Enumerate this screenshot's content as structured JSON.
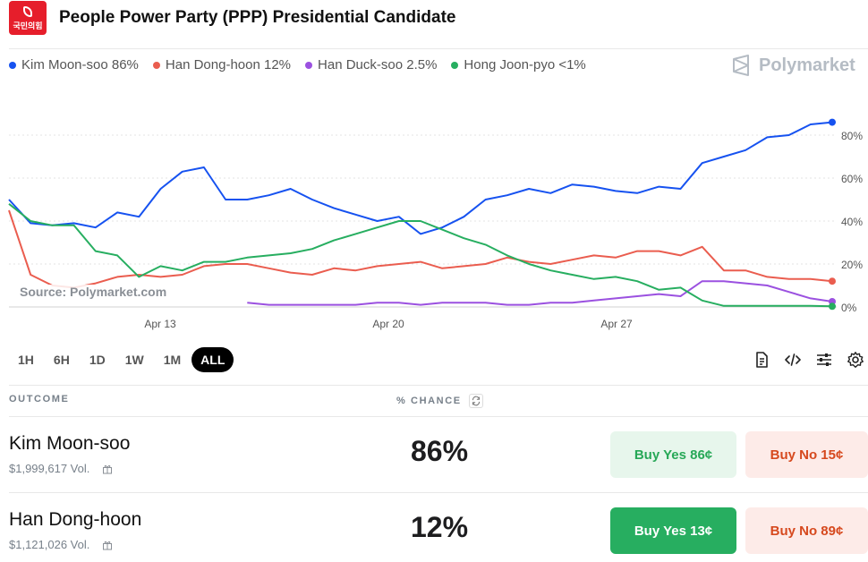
{
  "header": {
    "title": "People Power Party (PPP) Presidential Candidate",
    "logo_text": "국민의힘"
  },
  "legend": [
    {
      "label": "Kim Moon-soo 86%",
      "color": "#1652f0"
    },
    {
      "label": "Han Dong-hoon 12%",
      "color": "#ea5d4f"
    },
    {
      "label": "Han Duck-soo 2.5%",
      "color": "#9b51e0"
    },
    {
      "label": "Hong Joon-pyo <1%",
      "color": "#27ae60"
    }
  ],
  "brand": "Polymarket",
  "source": "Source: Polymarket.com",
  "chart_data": {
    "type": "line",
    "x_ticks": [
      "Apr 13",
      "Apr 20",
      "Apr 27"
    ],
    "y_ticks": [
      "80%",
      "60%",
      "40%",
      "20%",
      "0%"
    ],
    "ylim": [
      0,
      80
    ],
    "grid": true,
    "series": [
      {
        "name": "Kim Moon-soo",
        "color": "#1652f0",
        "values": [
          50,
          39,
          38,
          39,
          37,
          44,
          42,
          55,
          63,
          65,
          50,
          50,
          52,
          55,
          50,
          46,
          43,
          40,
          42,
          34,
          37,
          42,
          50,
          52,
          55,
          53,
          57,
          56,
          54,
          53,
          56,
          55,
          67,
          70,
          73,
          79,
          80,
          85,
          86
        ]
      },
      {
        "name": "Han Dong-hoon",
        "color": "#ea5d4f",
        "values": [
          45,
          15,
          10,
          9,
          11,
          14,
          15,
          14,
          15,
          19,
          20,
          20,
          18,
          16,
          15,
          18,
          17,
          19,
          20,
          21,
          18,
          19,
          20,
          23,
          21,
          20,
          22,
          24,
          23,
          26,
          26,
          24,
          28,
          17,
          17,
          14,
          13,
          13,
          12
        ]
      },
      {
        "name": "Han Duck-soo",
        "color": "#9b51e0",
        "values": [
          null,
          null,
          null,
          null,
          null,
          null,
          null,
          null,
          null,
          null,
          null,
          2,
          1,
          1,
          1,
          1,
          1,
          2,
          2,
          1,
          2,
          2,
          2,
          1,
          1,
          2,
          2,
          3,
          4,
          5,
          6,
          5,
          12,
          12,
          11,
          10,
          7,
          4,
          2.5
        ]
      },
      {
        "name": "Hong Joon-pyo",
        "color": "#27ae60",
        "values": [
          48,
          40,
          38,
          38,
          26,
          24,
          14,
          19,
          17,
          21,
          21,
          23,
          24,
          25,
          27,
          31,
          34,
          37,
          40,
          40,
          36,
          32,
          29,
          24,
          20,
          17,
          15,
          13,
          14,
          12,
          8,
          9,
          3,
          0.5,
          0.5,
          0.5,
          0.5,
          0.5,
          0.3
        ]
      }
    ]
  },
  "timeframes": [
    "1H",
    "6H",
    "1D",
    "1W",
    "1M",
    "ALL"
  ],
  "active_timeframe": "ALL",
  "table": {
    "outcome_header": "OUTCOME",
    "chance_header": "% CHANCE",
    "rows": [
      {
        "name": "Kim Moon-soo",
        "volume": "$1,999,617 Vol.",
        "chance": "86%",
        "yes_label": "Buy Yes 86¢",
        "no_label": "Buy No 15¢"
      },
      {
        "name": "Han Dong-hoon",
        "volume": "$1,121,026 Vol.",
        "chance": "12%",
        "yes_label": "Buy Yes 13¢",
        "no_label": "Buy No 89¢"
      }
    ]
  },
  "icons": [
    "document-icon",
    "code-icon",
    "sliders-icon",
    "gear-icon",
    "refresh-icon",
    "gift-icon"
  ]
}
